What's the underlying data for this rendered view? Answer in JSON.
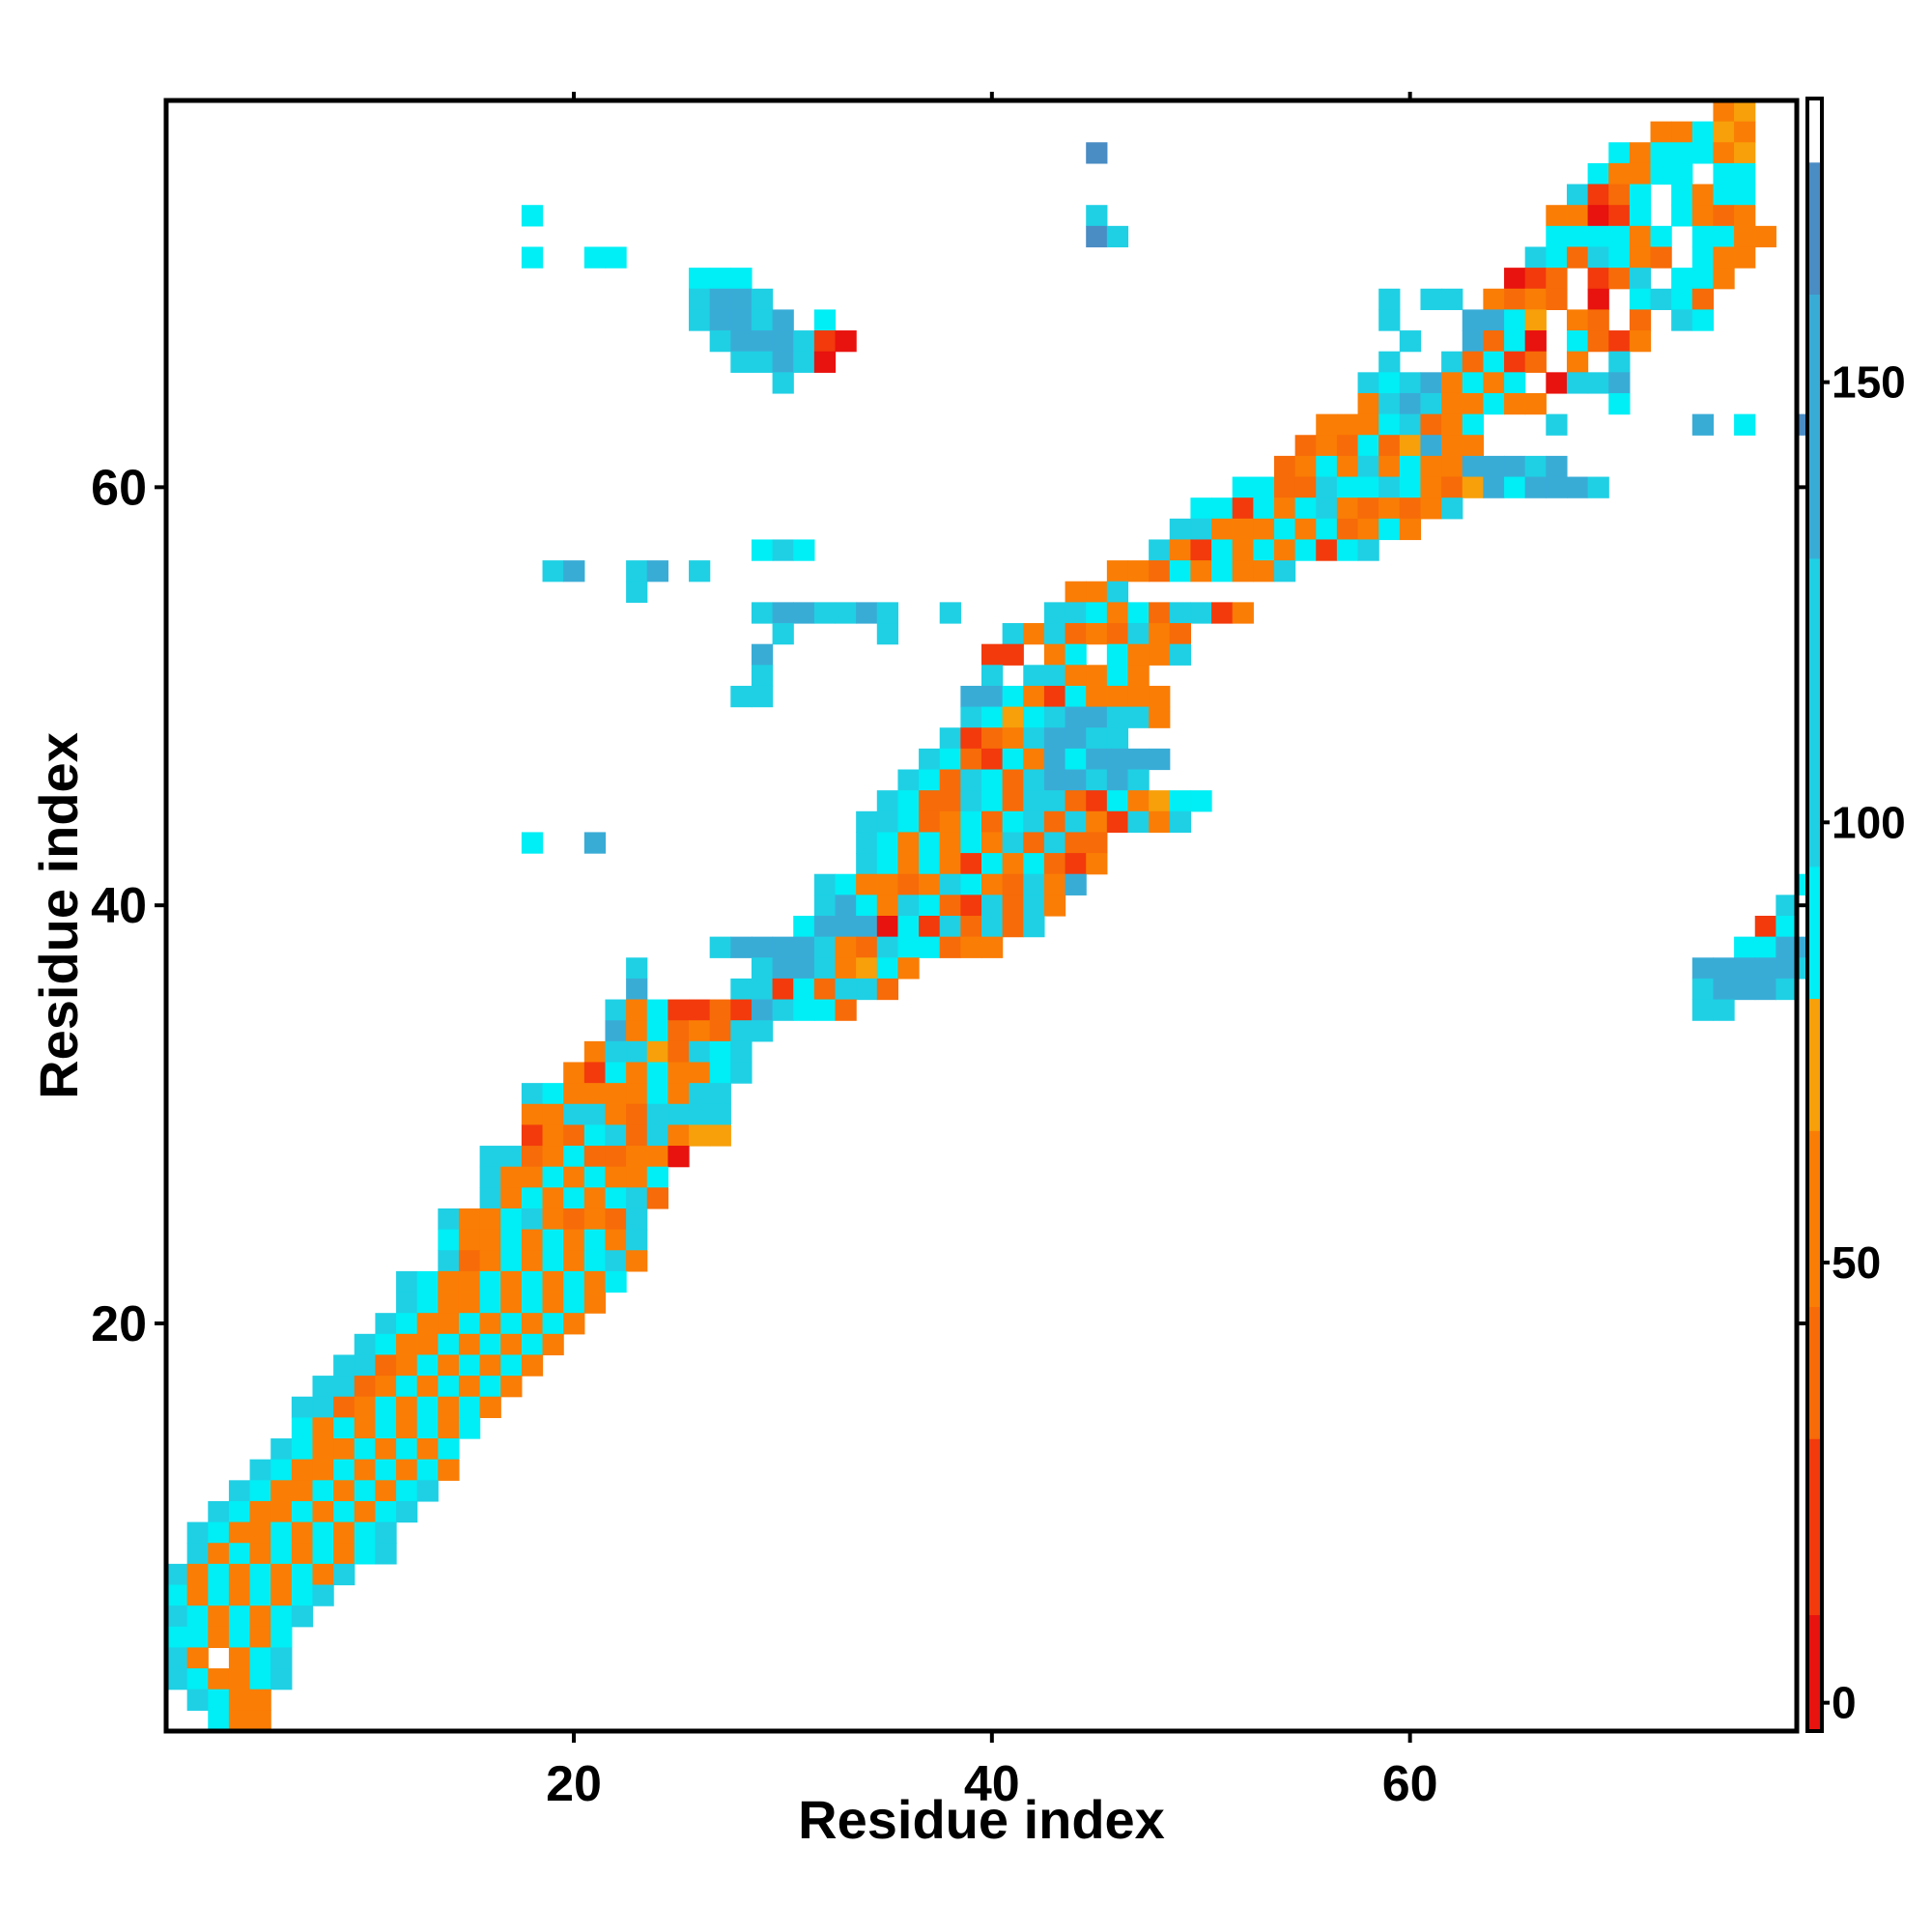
{
  "chart_data": {
    "type": "heatmap",
    "title": "",
    "xlabel": "Residue index",
    "ylabel": "Residue index",
    "xlim": [
      0.5,
      78.5
    ],
    "ylim": [
      0.5,
      78.5
    ],
    "x_ticks": [
      "20",
      "40",
      "60"
    ],
    "y_ticks": [
      "20",
      "40",
      "60"
    ],
    "colorbar": {
      "min": -3,
      "max": 182,
      "ticks": [
        "0",
        "50",
        "100",
        "150"
      ],
      "bands": [
        {
          "from": -3,
          "to": 10,
          "color": "#e8120e"
        },
        {
          "from": 10,
          "to": 30,
          "color": "#f23a0c"
        },
        {
          "from": 30,
          "to": 45,
          "color": "#f76b08"
        },
        {
          "from": 45,
          "to": 65,
          "color": "#fa7d05"
        },
        {
          "from": 65,
          "to": 80,
          "color": "#f7a00a"
        },
        {
          "from": 80,
          "to": 95,
          "color": "#00eef5"
        },
        {
          "from": 95,
          "to": 130,
          "color": "#1fd0e4"
        },
        {
          "from": 130,
          "to": 160,
          "color": "#39acd6"
        },
        {
          "from": 160,
          "to": 175,
          "color": "#4a8cc4"
        },
        {
          "from": 175,
          "to": 182,
          "color": "#ffffff"
        }
      ]
    },
    "cells": {
      "note_value_codes": "r=5, R=20, o=40, O=55, A=72, c=88, C=110, b=145, B=168",
      "grid_rows": [
        "                                                                          OA",
        "                                                                       OOcAO",
        "                                            B                        cOcccOA",
        "                                                                    cOOcc cc",
        "                                                                   CRoc cOcc",
        "                 c                          C                     OOrRc cOoO",
        "                                            BC                    ccccOc ccOO",
        "                 c  cc                                           CcoCcOo cOO",
        "                         ccc                                    rRo RoC ccO",
        "                         CbbC                             C CC OoOo r cCco",
        "                         CbbCb c                          C   bbcA Oo o Cc",
        "                          CbbbCRr                          C  bocr coRO",
        "                           CCbCr                          C  CocRo O C",
        "                             C                           CcCbOcOc rCCb",
        "                                                         OCbCOOcOO   c",
        "                                                       OOOcCoOc   C      b c  B",
        "                                                      oOocoAbOO",
        "                                                     oOcOCOcOObbbCb",
        "                                                   ccooCccCcOoAbcbbbC",
        "                                                 ccRcOcCOoOoOC",
        "                                                CCOOOcOcoOcO",
        "                            cCc                CORcOcOcRcC",
        "                  Cb  Cb C                   OOocOcOOC",
        "                      C                    OOC",
        "                            CbbCCbC  C    CCcOcoCCRO",
        "                             C    C     COCoOoCOo",
        "                            b          RR Oc cOOC",
        "                            C          C CCOOcO",
        "                           CC         bbcORcOOOO",
        "                                      CcAcCbbCCO",
        "                                     CRoOCbbCC",
        "                                    CcoRcObcbbbb",
        "                                   CcoCcoCbbCbC",
        "                                  CcooCcoCCoRcOAcc",
        "                                 CCcoOcocCoCORCOC",
        "                 c  b            CcOcOcOCoCoo",
        "                                 CcOcORcOcoRO",
        "                               CcOOoOCcOoCOb                                  c",
        "                               CbcOCcoRCoCO                                  C",
        "                              cbbbrcRCoCoC                                  Rc",
        "                          CbbbbCOoCccoOO                                   ccbb",
        "                      C     CbbCOAcO                                     bbbbbC",
        "                      b    CCRcoCCo                                      CbbbC",
        "                     COcRRoRbCcco                                        CC",
        "                     bOcoOoCC",
        "                    OCCAoCcC",
        "                   ORcOcOOcC",
        "                 CcOOOOcOCC",
        "                 OOCCOoCCCC",
        "                 ROocCoCOAA",
        "               CCoOcooOOr",
        "               COOcOcOOc",
        "               COcOcOcCo",
        "             COOcCOoOoC",
        "             cOOcOcOcOC",
        "             CoOcOcOcCO",
        "           CcOOcOcOcOc",
        "           CcOOcOcOcO",
        "          CcOOcOcOcO",
        "         CcOOcOcOcO",
        "        CCoOcOcOcO",
        "       CCoOcOcOcO",
        "      CCoOcOcOcO",
        "      cOcOcOcOc",
        "     CcOOcOcOc",
        "    CcOOcOcOcO",
        "   CcOOcOcOcC",
        "  CcOOcOcOcC",
        " CcOOcOcOcC",
        " COcOcOcOcC",
        "COcOcOcOC",
        "cOcOcOcC",
        "CcOcOcC",
        "ccOcOc",
        "CO OcC",
        "CcOOcC",
        " CcOO",
        "  cOO"
      ]
    }
  }
}
